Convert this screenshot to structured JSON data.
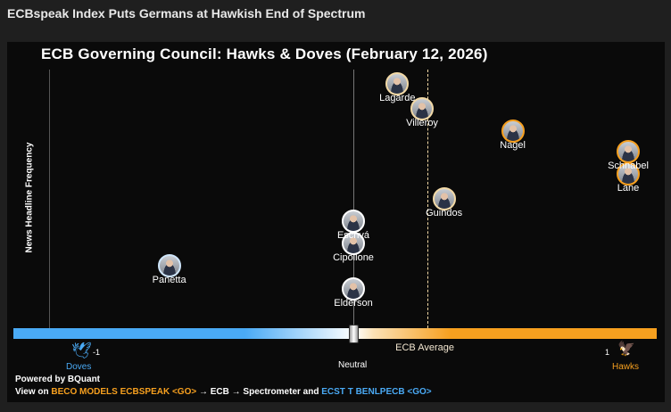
{
  "header": {
    "title": "ECBspeak Index Puts Germans at Hawkish End of Spectrum"
  },
  "chart_data": {
    "type": "scatter",
    "title": "ECB Governing Council: Hawks & Doves (February 12, 2026)",
    "ylabel": "News Headline Frequency",
    "xlim": [
      -1,
      1
    ],
    "x_labels": {
      "left_value": "-1",
      "left_label": "Doves",
      "center_label": "Neutral",
      "right_value": "1",
      "right_label": "Hawks"
    },
    "ecb_average": {
      "label": "ECB Average",
      "value": 0.27
    },
    "colors": {
      "dove": "#4aaaf5",
      "hawk": "#f7a01f",
      "neutral": "#ffffff",
      "mild_hawk": "#f2d9a6",
      "mild_dove": "#cfe6fb"
    },
    "points": [
      {
        "name": "Lagarde",
        "score": 0.16,
        "frequency": 95,
        "tone": "mild_hawk"
      },
      {
        "name": "Villeroy",
        "score": 0.25,
        "frequency": 85,
        "tone": "mild_hawk"
      },
      {
        "name": "Nagel",
        "score": 0.58,
        "frequency": 76,
        "tone": "hawk"
      },
      {
        "name": "Schnabel",
        "score": 1.0,
        "frequency": 68,
        "tone": "hawk"
      },
      {
        "name": "Lane",
        "score": 1.0,
        "frequency": 59,
        "tone": "hawk"
      },
      {
        "name": "Guindos",
        "score": 0.33,
        "frequency": 49,
        "tone": "mild_hawk"
      },
      {
        "name": "Escrivá",
        "score": 0.0,
        "frequency": 40,
        "tone": "neutral"
      },
      {
        "name": "Cipollone",
        "score": 0.0,
        "frequency": 31,
        "tone": "neutral"
      },
      {
        "name": "Panetta",
        "score": -0.67,
        "frequency": 22,
        "tone": "mild_dove"
      },
      {
        "name": "Elderson",
        "score": 0.0,
        "frequency": 13,
        "tone": "neutral"
      }
    ]
  },
  "footer": {
    "powered": "Powered by BQuant",
    "view_on": "View on",
    "cmd1": "BECO MODELS ECBSPEAK <GO>",
    "path": "→ ECB → Spectrometer and",
    "cmd2": "ECST T BENLPECB <GO>"
  }
}
